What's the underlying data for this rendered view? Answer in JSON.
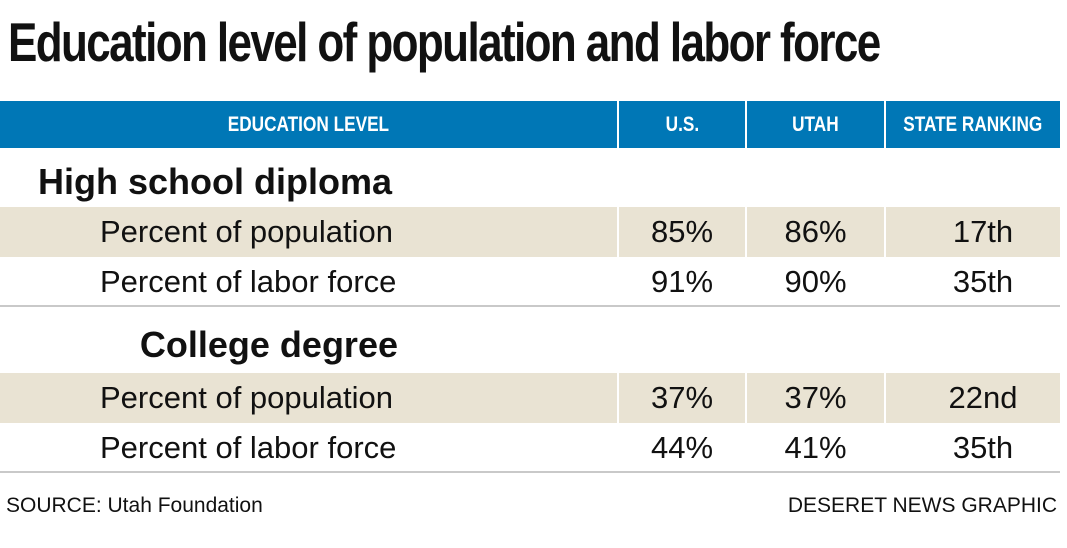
{
  "chart_data": {
    "type": "table",
    "title": "Education level of population and labor force",
    "columns": [
      "EDUCATION LEVEL",
      "U.S.",
      "UTAH",
      "STATE RANKING"
    ],
    "sections": [
      {
        "name": "High school diploma",
        "rows": [
          {
            "label": "Percent of population",
            "us": "85%",
            "utah": "86%",
            "rank": "17th"
          },
          {
            "label": "Percent of labor force",
            "us": "91%",
            "utah": "90%",
            "rank": "35th"
          }
        ]
      },
      {
        "name": "College degree",
        "rows": [
          {
            "label": "Percent of population",
            "us": "37%",
            "utah": "37%",
            "rank": "22nd"
          },
          {
            "label": "Percent of labor force",
            "us": "44%",
            "utah": "41%",
            "rank": "35th"
          }
        ]
      }
    ],
    "source": "SOURCE: Utah Foundation",
    "credit": "DESERET NEWS GRAPHIC"
  },
  "colors": {
    "header_bg": "#0077b6",
    "header_text": "#ffffff",
    "row_shade": "#e9e3d3",
    "rule": "#c9c9c9"
  }
}
